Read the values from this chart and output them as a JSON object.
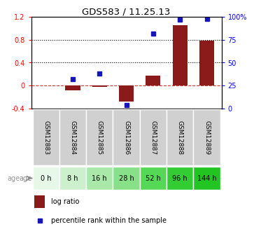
{
  "title": "GDS583 / 11.25.13",
  "samples": [
    "GSM12883",
    "GSM12884",
    "GSM12885",
    "GSM12886",
    "GSM12887",
    "GSM12888",
    "GSM12889"
  ],
  "ages": [
    "0 h",
    "8 h",
    "16 h",
    "28 h",
    "52 h",
    "96 h",
    "144 h"
  ],
  "log_ratio": [
    0.0,
    -0.08,
    -0.02,
    -0.28,
    0.18,
    1.05,
    0.79
  ],
  "percentile_rank": [
    null,
    0.32,
    0.38,
    0.04,
    0.82,
    0.97,
    0.98
  ],
  "bar_color": "#8B1A1A",
  "dot_color": "#1515BB",
  "ylim_left": [
    -0.4,
    1.2
  ],
  "ylim_right": [
    0,
    100
  ],
  "yticks_left": [
    -0.4,
    0.0,
    0.4,
    0.8,
    1.2
  ],
  "yticks_right": [
    0,
    25,
    50,
    75,
    100
  ],
  "yticklabels_left": [
    "-0.4",
    "0",
    "0.4",
    "0.8",
    "1.2"
  ],
  "yticklabels_right": [
    "0",
    "25",
    "50",
    "75",
    "100%"
  ],
  "hlines": [
    0.8,
    0.4
  ],
  "zero_line": 0.0,
  "bg_color": "#ffffff",
  "age_bg_colors": [
    "#e8f8e8",
    "#ccf0cc",
    "#aae8aa",
    "#88e088",
    "#66d966",
    "#44d044",
    "#22cc22"
  ],
  "sample_bg_color": "#d0d0d0",
  "legend_log_ratio": "log ratio",
  "legend_percentile": "percentile rank within the sample"
}
